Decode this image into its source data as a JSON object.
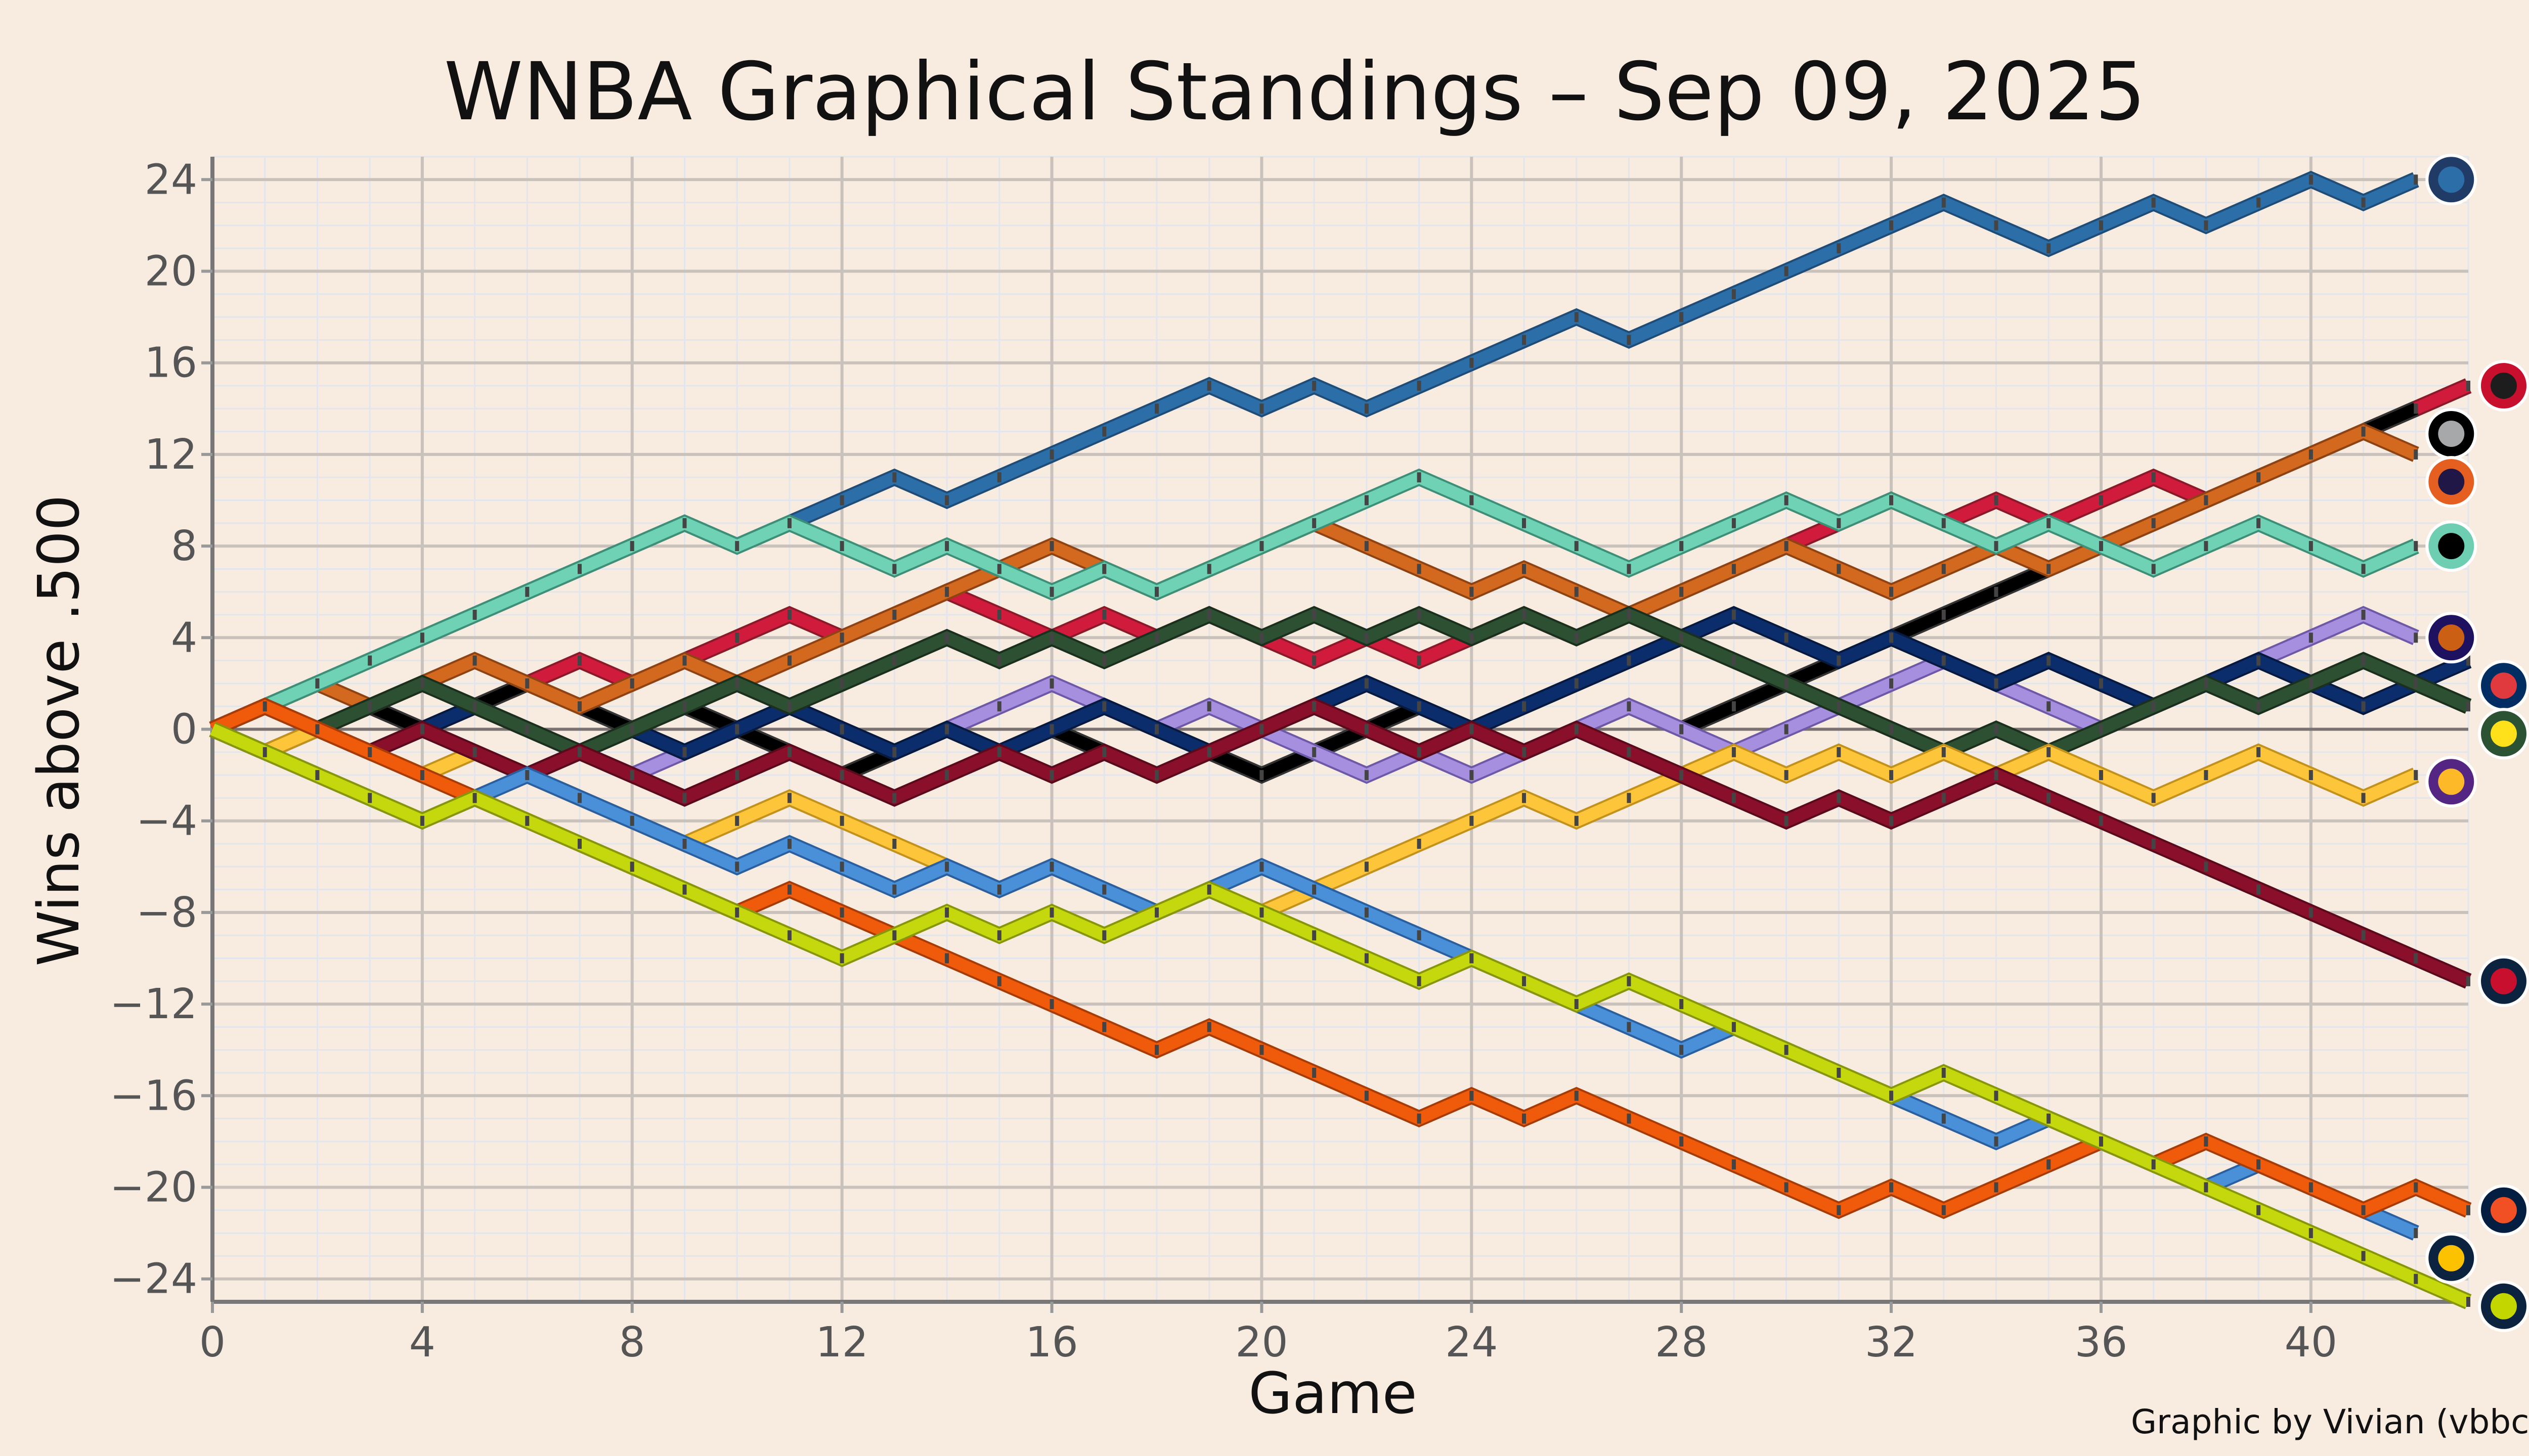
{
  "chart_data": {
    "type": "line",
    "title": "WNBA Graphical Standings – Sep 09, 2025",
    "xlabel": "Game",
    "ylabel": "Wins above .500",
    "xlim": [
      0,
      43
    ],
    "ylim": [
      -25,
      25
    ],
    "x_ticks": [
      0,
      4,
      8,
      12,
      16,
      20,
      24,
      28,
      32,
      36,
      40
    ],
    "y_ticks": [
      24,
      20,
      16,
      12,
      8,
      4,
      0,
      -4,
      -8,
      -12,
      -16,
      -20,
      -24
    ],
    "y_tick_labels": [
      "24",
      "20",
      "16",
      "12",
      "8",
      "4",
      "0",
      "−4",
      "−8",
      "−12",
      "−16",
      "−20",
      "−24"
    ],
    "grid": true,
    "credit": "Graphic by Vivian (vbbcla)",
    "series": [
      {
        "color": "#2c6fa8",
        "edge": "#1f4d78",
        "logo_colors": [
          "#1f3b66",
          "#2c6fa8"
        ],
        "values": [
          0,
          1,
          2,
          3,
          4,
          5,
          6,
          7,
          8,
          9,
          8,
          9,
          10,
          11,
          10,
          11,
          12,
          13,
          14,
          15,
          14,
          15,
          14,
          15,
          16,
          17,
          18,
          17,
          18,
          19,
          20,
          21,
          22,
          23,
          22,
          21,
          22,
          23,
          22,
          23,
          24,
          23,
          24
        ]
      },
      {
        "color": "#d01b3c",
        "edge": "#8a1a2a",
        "logo_colors": [
          "#c8102e",
          "#1d1d1d"
        ],
        "values": [
          0,
          -1,
          0,
          1,
          0,
          1,
          2,
          3,
          2,
          3,
          4,
          5,
          4,
          5,
          6,
          5,
          4,
          5,
          4,
          5,
          4,
          3,
          4,
          3,
          4,
          5,
          4,
          5,
          6,
          7,
          8,
          9,
          10,
          9,
          10,
          9,
          10,
          11,
          10,
          11,
          12,
          13,
          14,
          15
        ]
      },
      {
        "color": "#000000",
        "edge": "#333333",
        "logo_colors": [
          "#000000",
          "#a7a8aa"
        ],
        "values": [
          0,
          -1,
          0,
          1,
          0,
          1,
          2,
          1,
          0,
          1,
          0,
          -1,
          -2,
          -1,
          0,
          -1,
          0,
          -1,
          -2,
          -1,
          -2,
          -1,
          0,
          1,
          0,
          -1,
          0,
          1,
          0,
          1,
          2,
          3,
          4,
          5,
          6,
          7,
          8,
          9,
          10,
          11,
          12,
          13,
          14
        ]
      },
      {
        "color": "#d2691e",
        "edge": "#8f4312",
        "logo_colors": [
          "#e56020",
          "#201747"
        ],
        "values": [
          0,
          1,
          2,
          1,
          2,
          3,
          2,
          1,
          2,
          3,
          2,
          3,
          4,
          5,
          6,
          7,
          8,
          7,
          6,
          7,
          8,
          9,
          8,
          7,
          6,
          7,
          6,
          5,
          6,
          7,
          8,
          7,
          6,
          7,
          8,
          7,
          8,
          9,
          10,
          11,
          12,
          13,
          12
        ]
      },
      {
        "color": "#6fd2b4",
        "edge": "#3d8f78",
        "logo_colors": [
          "#6eceb2",
          "#000000"
        ],
        "values": [
          0,
          1,
          2,
          3,
          4,
          5,
          6,
          7,
          8,
          9,
          8,
          9,
          8,
          7,
          8,
          7,
          6,
          7,
          6,
          7,
          8,
          9,
          10,
          11,
          10,
          9,
          8,
          7,
          8,
          9,
          10,
          9,
          10,
          9,
          8,
          9,
          8,
          7,
          8,
          9,
          8,
          7,
          8
        ]
      },
      {
        "color": "#a58fde",
        "edge": "#6e58a8",
        "logo_colors": [
          "#1d1160",
          "#cb6015"
        ],
        "values": [
          0,
          1,
          0,
          -1,
          0,
          -1,
          -2,
          -1,
          -2,
          -1,
          0,
          1,
          0,
          -1,
          0,
          1,
          2,
          1,
          0,
          1,
          0,
          -1,
          -2,
          -1,
          -2,
          -1,
          0,
          1,
          0,
          -1,
          0,
          1,
          2,
          3,
          2,
          1,
          0,
          1,
          2,
          3,
          4,
          5,
          4
        ]
      },
      {
        "color": "#0c2d6b",
        "edge": "#061a40",
        "logo_colors": [
          "#002d62",
          "#e03a3e"
        ],
        "values": [
          0,
          1,
          0,
          -1,
          0,
          1,
          0,
          -1,
          0,
          -1,
          0,
          1,
          0,
          -1,
          0,
          -1,
          0,
          1,
          0,
          -1,
          0,
          1,
          2,
          1,
          0,
          1,
          2,
          3,
          4,
          5,
          4,
          3,
          4,
          3,
          2,
          3,
          2,
          1,
          2,
          3,
          2,
          1,
          2,
          3
        ]
      },
      {
        "color": "#2d4f32",
        "edge": "#1a2f1d",
        "logo_colors": [
          "#2c5234",
          "#fee11a"
        ],
        "values": [
          0,
          -1,
          0,
          1,
          2,
          1,
          0,
          -1,
          0,
          1,
          2,
          1,
          2,
          3,
          4,
          3,
          4,
          3,
          4,
          5,
          4,
          5,
          4,
          5,
          4,
          5,
          4,
          5,
          4,
          3,
          2,
          1,
          0,
          -1,
          0,
          -1,
          0,
          1,
          2,
          1,
          2,
          3,
          2,
          1
        ]
      },
      {
        "color": "#fdc53a",
        "edge": "#c2921c",
        "logo_colors": [
          "#552583",
          "#fdb927"
        ],
        "values": [
          0,
          -1,
          0,
          -1,
          -2,
          -1,
          -2,
          -3,
          -4,
          -5,
          -4,
          -3,
          -4,
          -5,
          -6,
          -7,
          -6,
          -7,
          -8,
          -7,
          -8,
          -7,
          -6,
          -5,
          -4,
          -3,
          -4,
          -3,
          -2,
          -1,
          -2,
          -1,
          -2,
          -1,
          -2,
          -1,
          -2,
          -3,
          -2,
          -1,
          -2,
          -3,
          -2
        ]
      },
      {
        "color": "#8a0f2a",
        "edge": "#5a0a1c",
        "logo_colors": [
          "#0c2340",
          "#c8102e"
        ],
        "values": [
          0,
          1,
          0,
          -1,
          0,
          -1,
          -2,
          -1,
          -2,
          -3,
          -2,
          -1,
          -2,
          -3,
          -2,
          -1,
          -2,
          -1,
          -2,
          -1,
          0,
          1,
          0,
          -1,
          0,
          -1,
          0,
          -1,
          -2,
          -3,
          -4,
          -3,
          -4,
          -3,
          -2,
          -3,
          -4,
          -5,
          -6,
          -7,
          -8,
          -9,
          -10,
          -11
        ]
      },
      {
        "color": "#4a90d9",
        "edge": "#2a60a0",
        "logo_colors": [
          "#0c2340",
          "#fcc200"
        ],
        "values": [
          0,
          -1,
          -2,
          -3,
          -4,
          -3,
          -2,
          -3,
          -4,
          -5,
          -6,
          -5,
          -6,
          -7,
          -6,
          -7,
          -6,
          -7,
          -8,
          -7,
          -6,
          -7,
          -8,
          -9,
          -10,
          -11,
          -12,
          -13,
          -14,
          -13,
          -14,
          -15,
          -16,
          -17,
          -18,
          -17,
          -18,
          -19,
          -20,
          -19,
          -20,
          -21,
          -22
        ]
      },
      {
        "color": "#f05a0b",
        "edge": "#a83c06",
        "logo_colors": [
          "#041e42",
          "#f05023"
        ],
        "values": [
          0,
          1,
          0,
          -1,
          -2,
          -3,
          -4,
          -5,
          -6,
          -7,
          -8,
          -7,
          -8,
          -9,
          -10,
          -11,
          -12,
          -13,
          -14,
          -13,
          -14,
          -15,
          -16,
          -17,
          -16,
          -17,
          -16,
          -17,
          -18,
          -19,
          -20,
          -21,
          -20,
          -21,
          -20,
          -19,
          -18,
          -19,
          -18,
          -19,
          -20,
          -21,
          -20,
          -21
        ]
      },
      {
        "color": "#c4d80d",
        "edge": "#889609",
        "logo_colors": [
          "#0c2340",
          "#c4d600"
        ],
        "values": [
          0,
          -1,
          -2,
          -3,
          -4,
          -3,
          -4,
          -5,
          -6,
          -7,
          -8,
          -9,
          -10,
          -9,
          -8,
          -9,
          -8,
          -9,
          -8,
          -7,
          -8,
          -9,
          -10,
          -11,
          -10,
          -11,
          -12,
          -11,
          -12,
          -13,
          -14,
          -15,
          -16,
          -15,
          -16,
          -17,
          -18,
          -19,
          -20,
          -21,
          -22,
          -23,
          -24,
          -25
        ]
      }
    ]
  }
}
